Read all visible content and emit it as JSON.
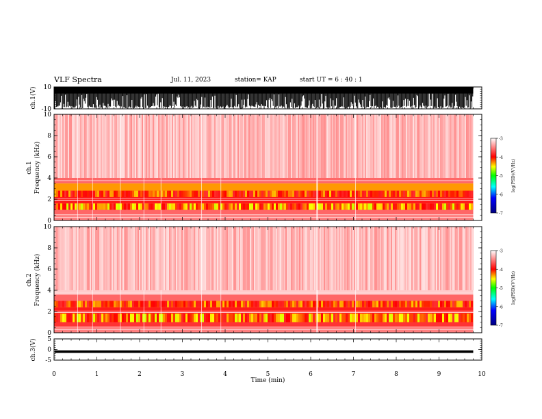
{
  "header": {
    "title": "VLF Spectra",
    "date": "Jul. 11, 2023",
    "station": "station= KAP",
    "start": "start UT = 6 : 40 : 1"
  },
  "chart_data": [
    {
      "panel": "ch1-waveform",
      "type": "line",
      "ylabel": "ch.1(V)",
      "ylim": [
        -10,
        10
      ],
      "yticks": [
        "10",
        "-10"
      ],
      "xlim": [
        0,
        10
      ],
      "description_values": "dense black waveform saturating between -10 and 10 V",
      "data_end_min": 9.8
    },
    {
      "panel": "ch1-spectrogram",
      "type": "heatmap",
      "ylabel": "ch.1\nFrequency (kHz)",
      "ylim": [
        0,
        10
      ],
      "yticks": [
        "0",
        "2",
        "4",
        "6",
        "8",
        "10"
      ],
      "xlim": [
        0,
        10
      ],
      "data_end_min": 9.8,
      "bands": [
        {
          "f_lo": 0.0,
          "f_hi": 0.5,
          "level": -3.5
        },
        {
          "f_lo": 0.5,
          "f_hi": 1.0,
          "level": -3.6
        },
        {
          "f_lo": 1.0,
          "f_hi": 1.6,
          "level": -4.2
        },
        {
          "f_lo": 1.6,
          "f_hi": 2.2,
          "level": -3.9
        },
        {
          "f_lo": 2.2,
          "f_hi": 2.8,
          "level": -4.0
        },
        {
          "f_lo": 2.8,
          "f_hi": 3.5,
          "level": -4.3
        },
        {
          "f_lo": 3.5,
          "f_hi": 4.0,
          "level": -3.6
        },
        {
          "f_lo": 4.0,
          "f_hi": 10.0,
          "level": -3.2
        }
      ],
      "colorbar": {
        "label": "log(PSD)(V²/Hz)",
        "range": [
          -7,
          -3
        ],
        "ticks": [
          "-3",
          "-4",
          "-5",
          "-6",
          "-7"
        ]
      }
    },
    {
      "panel": "ch2-spectrogram",
      "type": "heatmap",
      "ylabel": "ch.2\nFrequency (kHz)",
      "ylim": [
        0,
        10
      ],
      "yticks": [
        "0",
        "2",
        "4",
        "6",
        "8",
        "10"
      ],
      "xlim": [
        0,
        10
      ],
      "data_end_min": 9.8,
      "bands": [
        {
          "f_lo": 0.0,
          "f_hi": 0.5,
          "level": -3.5
        },
        {
          "f_lo": 0.5,
          "f_hi": 1.0,
          "level": -3.8
        },
        {
          "f_lo": 1.0,
          "f_hi": 1.8,
          "level": -4.5
        },
        {
          "f_lo": 1.8,
          "f_hi": 2.4,
          "level": -3.9
        },
        {
          "f_lo": 2.4,
          "f_hi": 3.0,
          "level": -4.3
        },
        {
          "f_lo": 3.0,
          "f_hi": 3.6,
          "level": -3.6
        },
        {
          "f_lo": 3.6,
          "f_hi": 10.0,
          "level": -3.2
        }
      ],
      "colorbar": {
        "label": "log(PSD)(V²/Hz)",
        "range": [
          -7,
          -3
        ],
        "ticks": [
          "-3",
          "-4",
          "-5",
          "-6",
          "-7"
        ]
      }
    },
    {
      "panel": "ch3-waveform",
      "type": "line",
      "ylabel": "ch.3(V)",
      "ylim": [
        -5,
        5
      ],
      "yticks": [
        "5",
        "0",
        "-5"
      ],
      "xlim": [
        0,
        10
      ],
      "xticks": [
        "0",
        "1",
        "2",
        "3",
        "4",
        "5",
        "6",
        "7",
        "8",
        "9",
        "10"
      ],
      "xlabel": "Time (min)",
      "baseline_v": -1,
      "data_end_min": 9.8
    }
  ],
  "colors": {
    "axis": "#000000",
    "cmap": [
      "#000080",
      "#0000ff",
      "#00ffff",
      "#00ff00",
      "#ffff00",
      "#ff0000",
      "#ffffff"
    ]
  }
}
